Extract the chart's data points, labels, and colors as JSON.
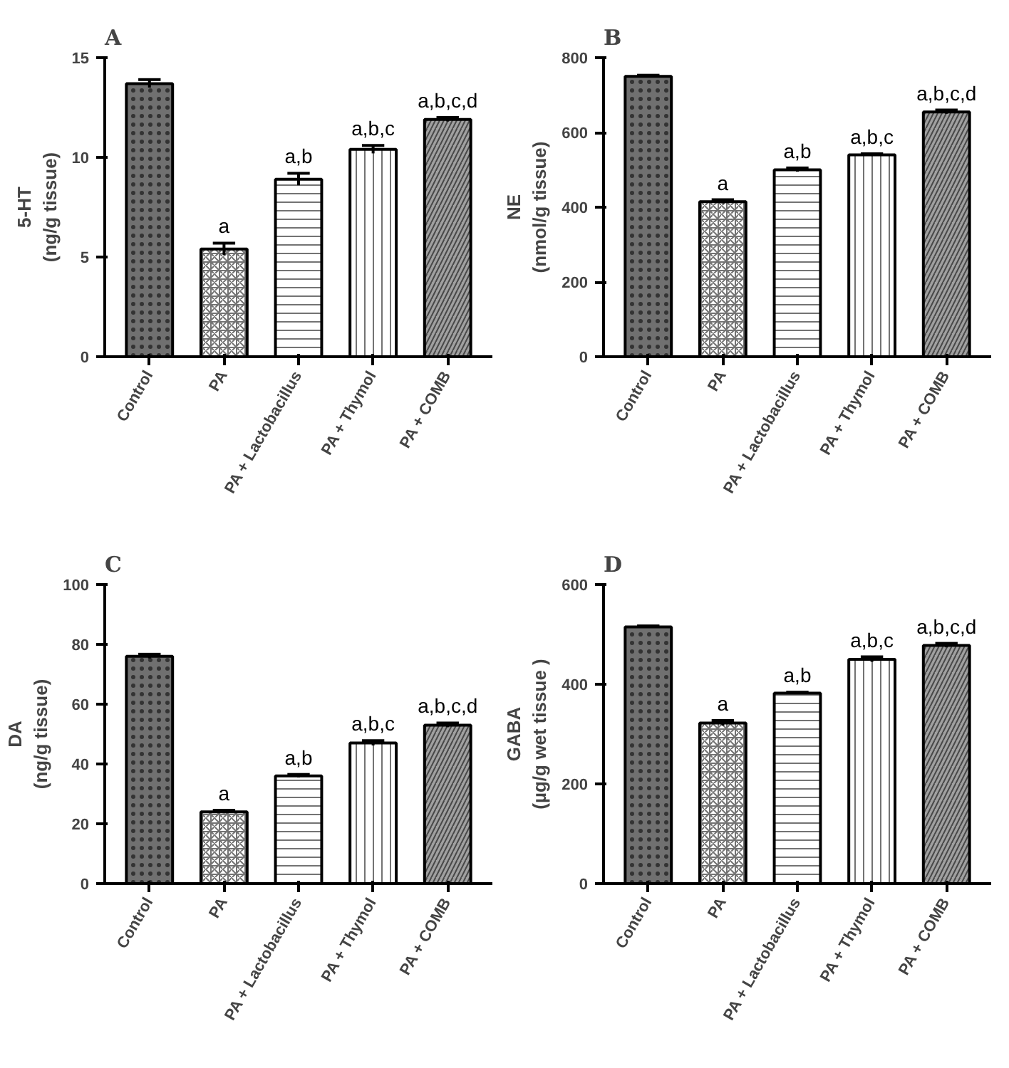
{
  "chart_data": [
    {
      "type": "bar",
      "title": "A",
      "ylabel": "5-HT\n(ng/g tissue)",
      "categories": [
        "Control",
        "PA",
        "PA + Lactobacillus",
        "PA + Thymol",
        "PA + COMB"
      ],
      "values": [
        13.7,
        5.4,
        8.9,
        10.4,
        11.9
      ],
      "errors": [
        0.2,
        0.3,
        0.3,
        0.2,
        0.1
      ],
      "value_labels": [
        null,
        "a",
        "a,b",
        "a,b,c",
        "a,b,c,d"
      ],
      "colors": [
        "#707070",
        "#ffffff",
        "#ffffff",
        "#ffffff",
        "#a0a0a0"
      ],
      "ylim": [
        0,
        15
      ],
      "yticks": [
        0,
        5,
        10,
        15
      ],
      "grid": false,
      "legend": false
    },
    {
      "type": "bar",
      "title": "B",
      "ylabel": "NE\n(nmol/g tissue)",
      "categories": [
        "Control",
        "PA",
        "PA + Lactobacillus",
        "PA + Thymol",
        "PA + COMB"
      ],
      "values": [
        750,
        415,
        500,
        540,
        655
      ],
      "errors": [
        3,
        5,
        5,
        3,
        5
      ],
      "value_labels": [
        null,
        "a",
        "a,b",
        "a,b,c",
        "a,b,c,d"
      ],
      "colors": [
        "#707070",
        "#ffffff",
        "#ffffff",
        "#ffffff",
        "#a0a0a0"
      ],
      "ylim": [
        0,
        800
      ],
      "yticks": [
        0,
        200,
        400,
        600,
        800
      ],
      "grid": false,
      "legend": false
    },
    {
      "type": "bar",
      "title": "C",
      "ylabel": "DA\n(ng/g tissue)",
      "categories": [
        "Control",
        "PA",
        "PA + Lactobacillus",
        "PA + Thymol",
        "PA + COMB"
      ],
      "values": [
        76,
        24,
        36,
        47,
        53
      ],
      "errors": [
        0.7,
        0.5,
        0.5,
        0.8,
        0.7
      ],
      "value_labels": [
        null,
        "a",
        "a,b",
        "a,b,c",
        "a,b,c,d"
      ],
      "colors": [
        "#707070",
        "#ffffff",
        "#ffffff",
        "#ffffff",
        "#a0a0a0"
      ],
      "ylim": [
        0,
        100
      ],
      "yticks": [
        0,
        20,
        40,
        60,
        80,
        100
      ],
      "grid": false,
      "legend": false
    },
    {
      "type": "bar",
      "title": "D",
      "ylabel": "GABA\n(µg/g wet tissue )",
      "categories": [
        "Control",
        "PA",
        "PA + Lactobacillus",
        "PA + Thymol",
        "PA + COMB"
      ],
      "values": [
        515,
        322,
        382,
        450,
        478
      ],
      "errors": [
        2,
        5,
        2,
        5,
        4
      ],
      "value_labels": [
        null,
        "a",
        "a,b",
        "a,b,c",
        "a,b,c,d"
      ],
      "colors": [
        "#707070",
        "#ffffff",
        "#ffffff",
        "#ffffff",
        "#a0a0a0"
      ],
      "ylim": [
        0,
        600
      ],
      "yticks": [
        0,
        200,
        400,
        600
      ],
      "grid": false,
      "legend": false
    }
  ]
}
